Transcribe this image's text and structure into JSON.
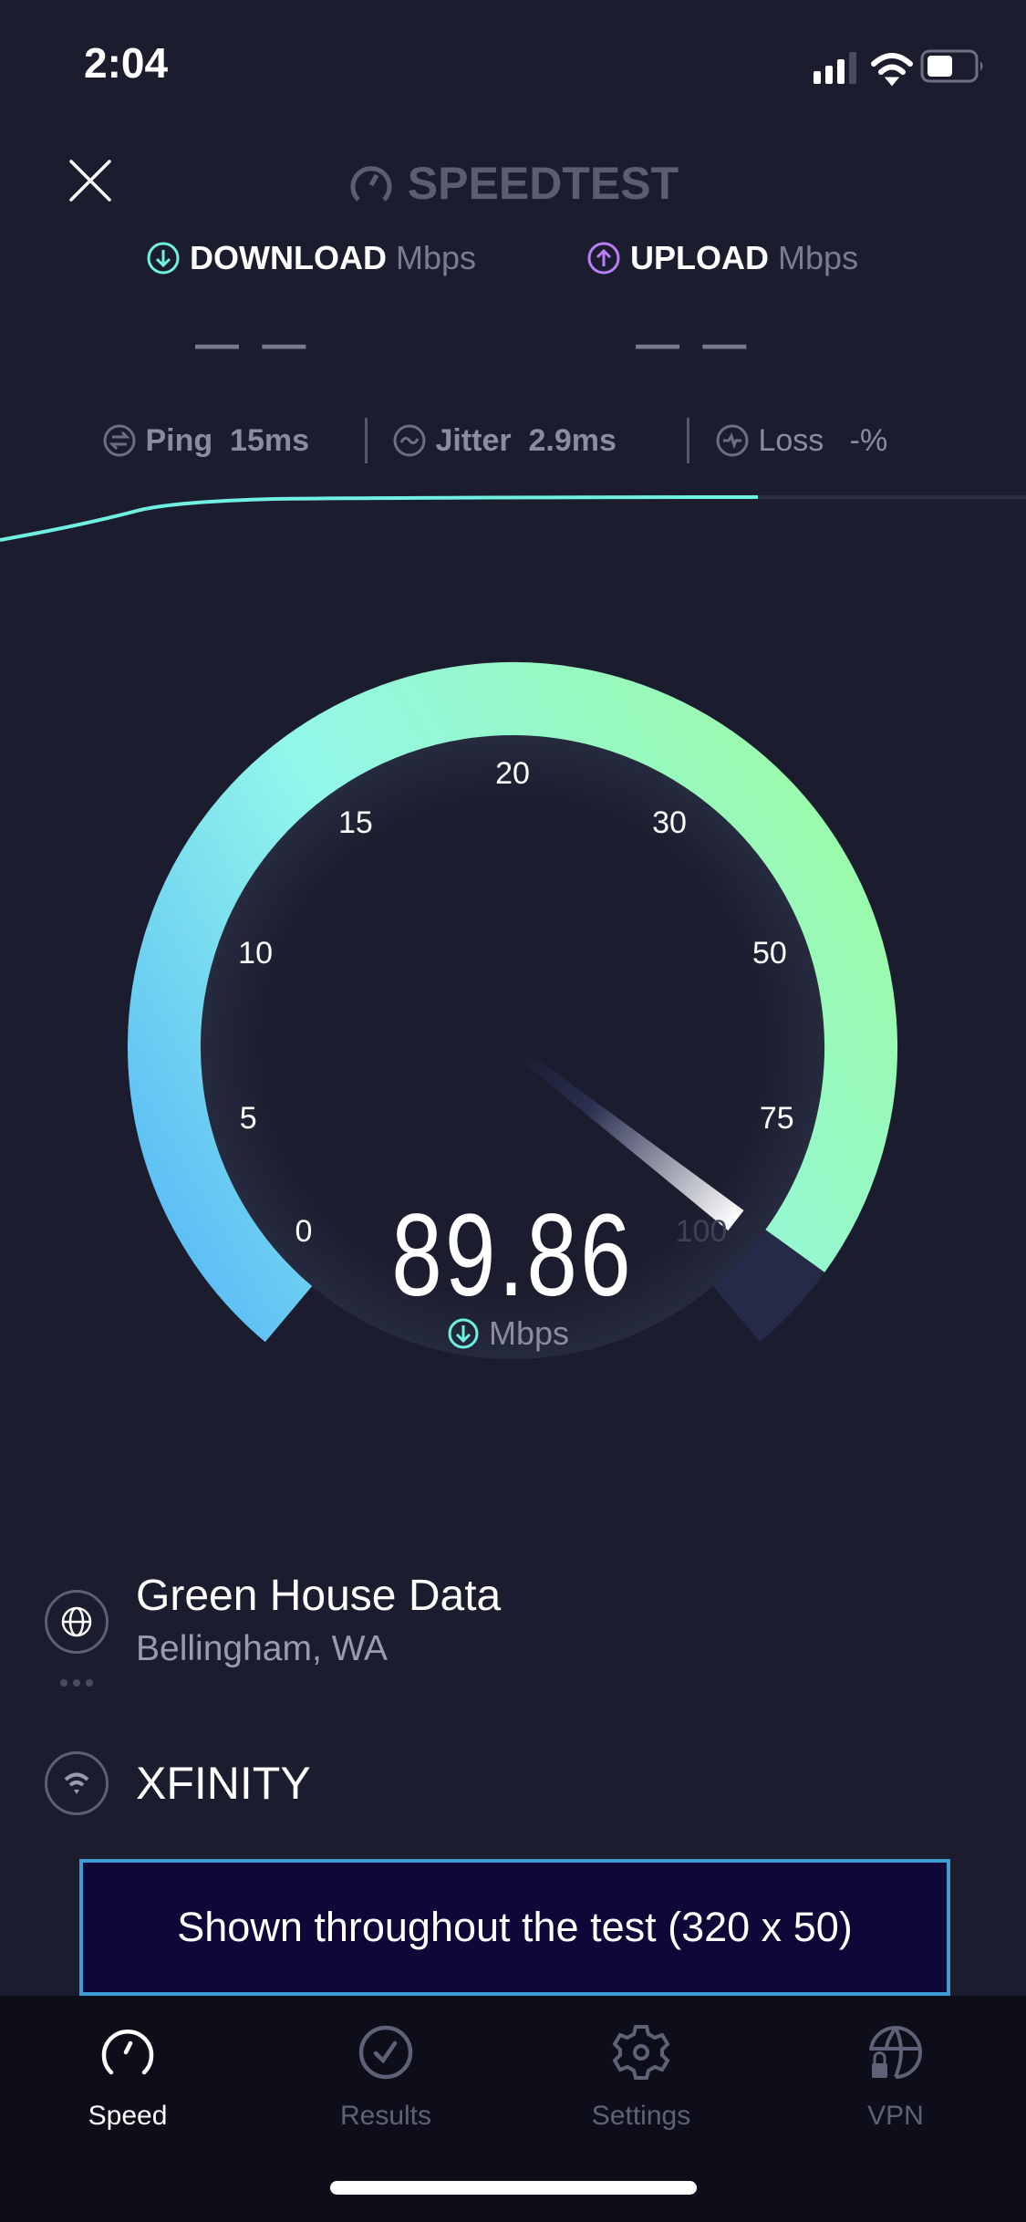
{
  "status_bar": {
    "time": "2:04",
    "signal_bars": 3,
    "signal_max": 4,
    "battery_level": 0.4
  },
  "header": {
    "close_icon": "close-icon",
    "logo": "SPEEDTEST"
  },
  "metrics": {
    "download": {
      "label": "DOWNLOAD",
      "unit": "Mbps",
      "value": "— —",
      "color": "#6ff0e0"
    },
    "upload": {
      "label": "UPLOAD",
      "unit": "Mbps",
      "value": "— —",
      "color": "#b97df5"
    },
    "ping": {
      "label": "Ping",
      "value": "15",
      "unit": "ms"
    },
    "jitter": {
      "label": "Jitter",
      "value": "2.9",
      "unit": "ms"
    },
    "loss": {
      "label": "Loss",
      "value": "-",
      "unit": "%"
    }
  },
  "gauge": {
    "ticks": [
      "0",
      "5",
      "10",
      "15",
      "20",
      "30",
      "50",
      "75",
      "100"
    ],
    "value": 89.86,
    "value_text": "89.86",
    "unit": "Mbps",
    "colors": {
      "start": "#54b5f7",
      "mid": "#92f7ea",
      "end": "#9cfaa2",
      "remaining": "#252a48"
    }
  },
  "server": {
    "name": "Green House Data",
    "location": "Bellingham, WA"
  },
  "isp": {
    "name": "XFINITY"
  },
  "ad": {
    "text": "Shown throughout the test (320 x 50)"
  },
  "tabs": [
    {
      "label": "Speed",
      "icon": "speedometer-icon",
      "active": true
    },
    {
      "label": "Results",
      "icon": "check-circle-icon",
      "active": false
    },
    {
      "label": "Settings",
      "icon": "gear-icon",
      "active": false
    },
    {
      "label": "VPN",
      "icon": "globe-lock-icon",
      "active": false
    }
  ]
}
